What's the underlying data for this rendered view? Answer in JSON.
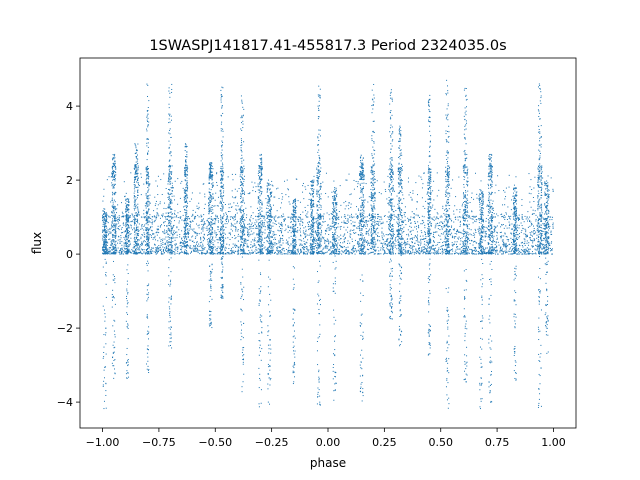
{
  "chart_data": {
    "type": "scatter",
    "title": "1SWASPJ141817.41-455817.3 Period 2324035.0s",
    "xlabel": "phase",
    "ylabel": "flux",
    "xlim": [
      -1.1,
      1.1
    ],
    "ylim": [
      -4.7,
      5.3
    ],
    "xticks": [
      -1.0,
      -0.75,
      -0.5,
      -0.25,
      0.0,
      0.25,
      0.5,
      0.75,
      1.0
    ],
    "xtick_labels": [
      "−1.00",
      "−0.75",
      "−0.50",
      "−0.25",
      "0.00",
      "0.25",
      "0.50",
      "0.75",
      "1.00"
    ],
    "yticks": [
      -4,
      -2,
      0,
      2,
      4
    ],
    "ytick_labels": [
      "−4",
      "−2",
      "0",
      "2",
      "4"
    ],
    "grid": false,
    "legend": "none",
    "series": [
      {
        "marker_color": "#1f77b4",
        "note_bands": "points concentrated in phase bands; baseline flux 0 to about 1, bursts up to about 4.7, dips down to about -4.2",
        "bands": [
          {
            "x": -0.99,
            "width": 0.02,
            "ymin": -4.2,
            "ymax": 1.2
          },
          {
            "x": -0.95,
            "width": 0.02,
            "ymin": -3.4,
            "ymax": 2.7
          },
          {
            "x": -0.89,
            "width": 0.015,
            "ymin": -3.5,
            "ymax": 1.5
          },
          {
            "x": -0.85,
            "width": 0.02,
            "ymin": 0.0,
            "ymax": 3.0
          },
          {
            "x": -0.8,
            "width": 0.015,
            "ymin": -3.3,
            "ymax": 4.7
          },
          {
            "x": -0.7,
            "width": 0.02,
            "ymin": -2.7,
            "ymax": 4.6
          },
          {
            "x": -0.63,
            "width": 0.015,
            "ymin": 0.0,
            "ymax": 3.0
          },
          {
            "x": -0.52,
            "width": 0.02,
            "ymin": -2.0,
            "ymax": 2.5
          },
          {
            "x": -0.47,
            "width": 0.015,
            "ymin": -1.2,
            "ymax": 4.6
          },
          {
            "x": -0.38,
            "width": 0.02,
            "ymin": -4.1,
            "ymax": 4.3
          },
          {
            "x": -0.3,
            "width": 0.02,
            "ymin": -4.2,
            "ymax": 2.7
          },
          {
            "x": -0.26,
            "width": 0.02,
            "ymin": -4.1,
            "ymax": 2.0
          },
          {
            "x": -0.15,
            "width": 0.015,
            "ymin": -3.5,
            "ymax": 1.5
          },
          {
            "x": -0.07,
            "width": 0.015,
            "ymin": 0.0,
            "ymax": 2.0
          },
          {
            "x": -0.04,
            "width": 0.02,
            "ymin": -4.1,
            "ymax": 4.6
          },
          {
            "x": 0.03,
            "width": 0.02,
            "ymin": -4.1,
            "ymax": 1.8
          },
          {
            "x": 0.15,
            "width": 0.02,
            "ymin": -4.2,
            "ymax": 2.7
          },
          {
            "x": 0.2,
            "width": 0.02,
            "ymin": 0.0,
            "ymax": 4.7
          },
          {
            "x": 0.28,
            "width": 0.02,
            "ymin": -1.8,
            "ymax": 4.5
          },
          {
            "x": 0.32,
            "width": 0.02,
            "ymin": -2.5,
            "ymax": 3.5
          },
          {
            "x": 0.45,
            "width": 0.015,
            "ymin": -2.8,
            "ymax": 4.5
          },
          {
            "x": 0.53,
            "width": 0.02,
            "ymin": -4.2,
            "ymax": 4.7
          },
          {
            "x": 0.61,
            "width": 0.02,
            "ymin": -3.5,
            "ymax": 4.5
          },
          {
            "x": 0.68,
            "width": 0.02,
            "ymin": -4.2,
            "ymax": 1.8
          },
          {
            "x": 0.72,
            "width": 0.02,
            "ymin": -4.2,
            "ymax": 2.7
          },
          {
            "x": 0.83,
            "width": 0.015,
            "ymin": -3.5,
            "ymax": 1.8
          },
          {
            "x": 0.94,
            "width": 0.02,
            "ymin": -4.2,
            "ymax": 4.6
          },
          {
            "x": 0.97,
            "width": 0.02,
            "ymin": -2.8,
            "ymax": 2.0
          }
        ]
      }
    ]
  }
}
